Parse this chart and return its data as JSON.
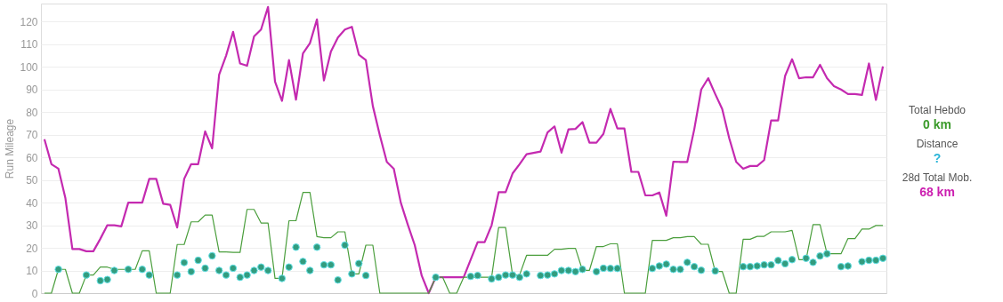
{
  "chart_data": [
    {
      "type": "line",
      "ylabel": "Run Mileage",
      "ylim": [
        0,
        128
      ],
      "yticks": [
        0,
        10,
        20,
        30,
        40,
        50,
        60,
        70,
        80,
        90,
        100,
        110,
        120
      ],
      "grid": "y",
      "tick_labels": "y",
      "categories": [
        null,
        null,
        null,
        null,
        null,
        null,
        null,
        null,
        null,
        null,
        null,
        null,
        null,
        null,
        null,
        null,
        null,
        null,
        null,
        null,
        null,
        null,
        null,
        null,
        null,
        null,
        null,
        null,
        null,
        null,
        null,
        null,
        null,
        null,
        null,
        null,
        null,
        null,
        null,
        null,
        null,
        null,
        null,
        null,
        null,
        null,
        null,
        null,
        null,
        null,
        null,
        null,
        null,
        null,
        null,
        null,
        null,
        null,
        null,
        null,
        null,
        null,
        null,
        null,
        null,
        null,
        null,
        null,
        null,
        null,
        null,
        null,
        null,
        null,
        null,
        null,
        null,
        null,
        null,
        null,
        null,
        null,
        null,
        null,
        null,
        null,
        null,
        null,
        null,
        null,
        null,
        null,
        null,
        null,
        null,
        null,
        null,
        null,
        null,
        null,
        null,
        null,
        null,
        null,
        null,
        null,
        null,
        null,
        null,
        null,
        null,
        null,
        null,
        null,
        null,
        null,
        null,
        null,
        null,
        null,
        null
      ],
      "series": [
        {
          "type": "line",
          "color": "#c42ab0",
          "values": [
            68,
            57,
            55,
            42,
            19.5,
            19.5,
            18.5,
            18.5,
            24,
            30,
            30,
            29.5,
            40,
            40,
            40,
            50.5,
            50.5,
            39.5,
            39,
            29,
            50.5,
            57,
            57,
            71.5,
            64,
            96.5,
            105,
            115.5,
            101.5,
            100.5,
            113.5,
            116.5,
            126.5,
            93.5,
            85,
            103,
            85.5,
            106,
            110.5,
            121,
            94,
            106.8,
            113,
            116.5,
            117.7,
            105.4,
            103,
            82.7,
            69.8,
            58,
            55,
            40,
            30.3,
            21.2,
            7.7,
            0,
            7,
            7,
            7,
            7,
            7,
            14.8,
            22.5,
            22.5,
            30,
            44.6,
            44.6,
            52.9,
            57,
            61.4,
            62,
            62.6,
            71,
            73.7,
            62.1,
            72.4,
            72.6,
            75.6,
            66.5,
            66.5,
            70.4,
            81.4,
            72.8,
            72.8,
            53.6,
            53.6,
            43.2,
            43.2,
            44.5,
            34.2,
            58.1,
            58,
            58,
            72.4,
            90,
            95,
            88,
            81.4,
            68.5,
            58,
            55,
            56.2,
            56.2,
            58.8,
            76.3,
            76.3,
            96,
            103.4,
            95,
            95.4,
            95.4,
            100.9,
            95,
            91.5,
            90,
            88,
            88,
            87.6,
            101.5,
            85.4,
            100.2
          ]
        },
        {
          "type": "line",
          "color": "#4a9e3c",
          "values": [
            0,
            0,
            10.5,
            10.5,
            0,
            0,
            8,
            8,
            11.5,
            11.5,
            10.5,
            10.5,
            10.5,
            10.5,
            18.7,
            18.7,
            0,
            0,
            0,
            21.5,
            21.5,
            31.5,
            31.5,
            34.5,
            34.5,
            18.2,
            18.2,
            18,
            18,
            37,
            37,
            31,
            31,
            6.5,
            6.5,
            32,
            32,
            44.5,
            44.5,
            25,
            24.5,
            24.5,
            27.1,
            27.1,
            8.5,
            8.5,
            21.2,
            21.2,
            0,
            0,
            0,
            0,
            0,
            0,
            0,
            0,
            7,
            7,
            0,
            0,
            7,
            7,
            7,
            7,
            7,
            29,
            29,
            8,
            8,
            16.7,
            16.7,
            16.7,
            16.7,
            19.4,
            19.4,
            19.8,
            19.8,
            10.1,
            10.1,
            20.6,
            20.6,
            21.8,
            21.8,
            0,
            0,
            0,
            0,
            23.3,
            23.3,
            23.3,
            24.5,
            24.5,
            25,
            25,
            21.6,
            21.6,
            9.6,
            9.6,
            0,
            0,
            23.8,
            23.8,
            25.1,
            25.1,
            27.1,
            27.1,
            27.1,
            27.7,
            14.8,
            14.8,
            30.3,
            30.3,
            17.4,
            17.4,
            17.4,
            24.1,
            24.1,
            28.3,
            28.3,
            29.9,
            29.9
          ]
        },
        {
          "type": "scatter",
          "marker": "circle",
          "color": "#339c7e",
          "values": [
            null,
            null,
            10.5,
            null,
            null,
            null,
            8,
            null,
            5.5,
            6,
            10,
            null,
            10.5,
            null,
            10.5,
            8,
            null,
            null,
            null,
            8,
            13.5,
            9.5,
            14.5,
            11,
            16.5,
            10,
            8,
            11,
            7,
            8,
            10,
            11.5,
            10,
            null,
            6.5,
            11.5,
            20.3,
            14,
            10,
            20.3,
            12.5,
            12.5,
            5.8,
            21.2,
            8.5,
            13.1,
            7.8,
            null,
            null,
            null,
            null,
            null,
            null,
            null,
            null,
            null,
            7,
            null,
            null,
            null,
            null,
            7.4,
            7.8,
            null,
            6.3,
            7,
            8,
            8,
            7,
            8.5,
            null,
            7.8,
            8,
            8.5,
            10,
            10,
            9.5,
            10.5,
            null,
            9.5,
            11,
            10.9,
            10.9,
            null,
            null,
            null,
            null,
            10.9,
            12,
            12.8,
            10.5,
            10.5,
            13.6,
            11.7,
            10.1,
            null,
            9.8,
            null,
            null,
            null,
            11.7,
            11.7,
            12,
            12.5,
            12.5,
            14.4,
            13,
            14.8,
            null,
            15.4,
            13.6,
            16.4,
            17.4,
            null,
            11.7,
            12,
            null,
            13.9,
            14.5,
            14.5,
            15.4
          ]
        }
      ]
    },
    {
      "type": "other",
      "annotations": [
        "Total Hebdo",
        "0 km",
        "Distance",
        "?",
        "28d Total Mob.",
        "68 km"
      ],
      "colors": [
        "#555555",
        "#3a9a2a",
        "#555555",
        "#2bb5d8",
        "#555555",
        "#cc1fb0"
      ]
    }
  ]
}
